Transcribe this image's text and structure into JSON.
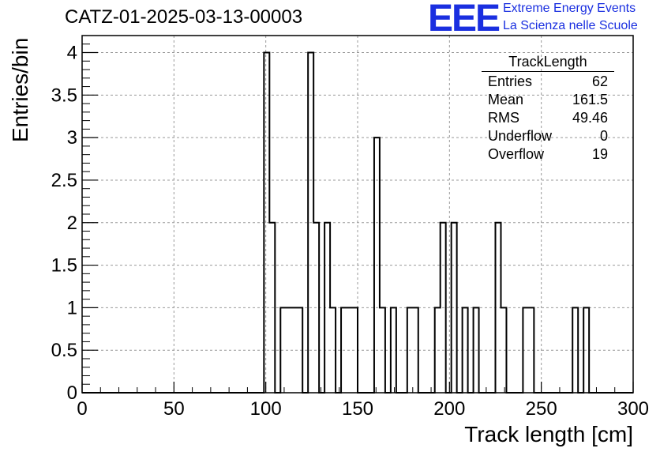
{
  "header": {
    "title": "CATZ-01-2025-03-13-00003",
    "logo_text": "EEE",
    "tagline_1": "Extreme Energy Events",
    "tagline_2": "La Scienza nelle Scuole",
    "brand_color": "#1a2fe0"
  },
  "stats_box": {
    "name": "TrackLength",
    "rows": [
      {
        "label": "Entries",
        "value": "62"
      },
      {
        "label": "Mean",
        "value": "161.5"
      },
      {
        "label": "RMS",
        "value": "49.46"
      },
      {
        "label": "Underflow",
        "value": "0"
      },
      {
        "label": "Overflow",
        "value": "19"
      }
    ]
  },
  "chart_data": {
    "type": "bar",
    "histogram": true,
    "title": "CATZ-01-2025-03-13-00003",
    "xlabel": "Track length [cm]",
    "ylabel": "Entries/bin",
    "xlim": [
      0,
      300
    ],
    "ylim": [
      0,
      4.2
    ],
    "grid": true,
    "xticks": [
      "0",
      "50",
      "100",
      "150",
      "200",
      "250",
      "300"
    ],
    "yticks": [
      "0",
      "0.5",
      "1",
      "1.5",
      "2",
      "2.5",
      "3",
      "3.5",
      "4"
    ],
    "bin_width": 3,
    "bin_edges": [
      0,
      3,
      6,
      9,
      12,
      15,
      18,
      21,
      24,
      27,
      30,
      33,
      36,
      39,
      42,
      45,
      48,
      51,
      54,
      57,
      60,
      63,
      66,
      69,
      72,
      75,
      78,
      81,
      84,
      87,
      90,
      93,
      96,
      99,
      102,
      105,
      108,
      111,
      114,
      117,
      120,
      123,
      126,
      129,
      132,
      135,
      138,
      141,
      144,
      147,
      150,
      153,
      156,
      159,
      162,
      165,
      168,
      171,
      174,
      177,
      180,
      183,
      186,
      189,
      192,
      195,
      198,
      201,
      204,
      207,
      210,
      213,
      216,
      219,
      222,
      225,
      228,
      231,
      234,
      237,
      240,
      243,
      246,
      249,
      252,
      255,
      258,
      261,
      264,
      267,
      270,
      273,
      276,
      279,
      282,
      285,
      288,
      291,
      294,
      297,
      300
    ],
    "values": [
      0,
      0,
      0,
      0,
      0,
      0,
      0,
      0,
      0,
      0,
      0,
      0,
      0,
      0,
      0,
      0,
      0,
      0,
      0,
      0,
      0,
      0,
      0,
      0,
      0,
      0,
      0,
      0,
      0,
      0,
      0,
      0,
      0,
      4,
      2,
      0,
      1,
      1,
      1,
      1,
      0,
      4,
      2,
      0,
      2,
      1,
      0,
      1,
      1,
      1,
      0,
      0,
      0,
      3,
      1,
      0,
      1,
      0,
      0,
      1,
      1,
      0,
      0,
      0,
      1,
      2,
      0,
      2,
      0,
      1,
      0,
      1,
      0,
      0,
      0,
      2,
      1,
      0,
      0,
      0,
      1,
      1,
      0,
      0,
      0,
      0,
      0,
      0,
      0,
      1,
      0,
      1,
      0,
      0,
      0,
      0,
      0,
      0,
      0,
      0
    ]
  }
}
